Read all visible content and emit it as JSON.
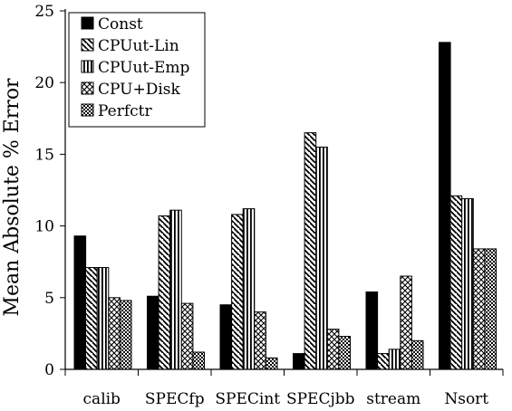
{
  "chart_data": {
    "type": "bar",
    "title": "",
    "xlabel": "",
    "ylabel": "Mean Absolute % Error",
    "ylim": [
      0,
      25
    ],
    "yticks": [
      0,
      5,
      10,
      15,
      20,
      25
    ],
    "grid": false,
    "legend_position": "top-left",
    "categories": [
      "calib",
      "SPECfp",
      "SPECint",
      "SPECjbb",
      "stream",
      "Nsort"
    ],
    "series": [
      {
        "name": "Const",
        "pattern": "solid",
        "values": [
          9.3,
          5.1,
          4.5,
          1.1,
          5.4,
          22.8
        ]
      },
      {
        "name": "CPUut-Lin",
        "pattern": "diagonal",
        "values": [
          7.1,
          10.7,
          10.8,
          16.5,
          1.1,
          12.1
        ]
      },
      {
        "name": "CPUut-Emp",
        "pattern": "vertical",
        "values": [
          7.1,
          11.1,
          11.2,
          15.5,
          1.4,
          11.9
        ]
      },
      {
        "name": "CPU+Disk",
        "pattern": "crosshatch",
        "values": [
          5.0,
          4.6,
          4.0,
          2.8,
          6.5,
          8.4
        ]
      },
      {
        "name": "Perfctr",
        "pattern": "checker",
        "values": [
          4.8,
          1.2,
          0.8,
          2.3,
          2.0,
          8.4
        ]
      }
    ]
  }
}
